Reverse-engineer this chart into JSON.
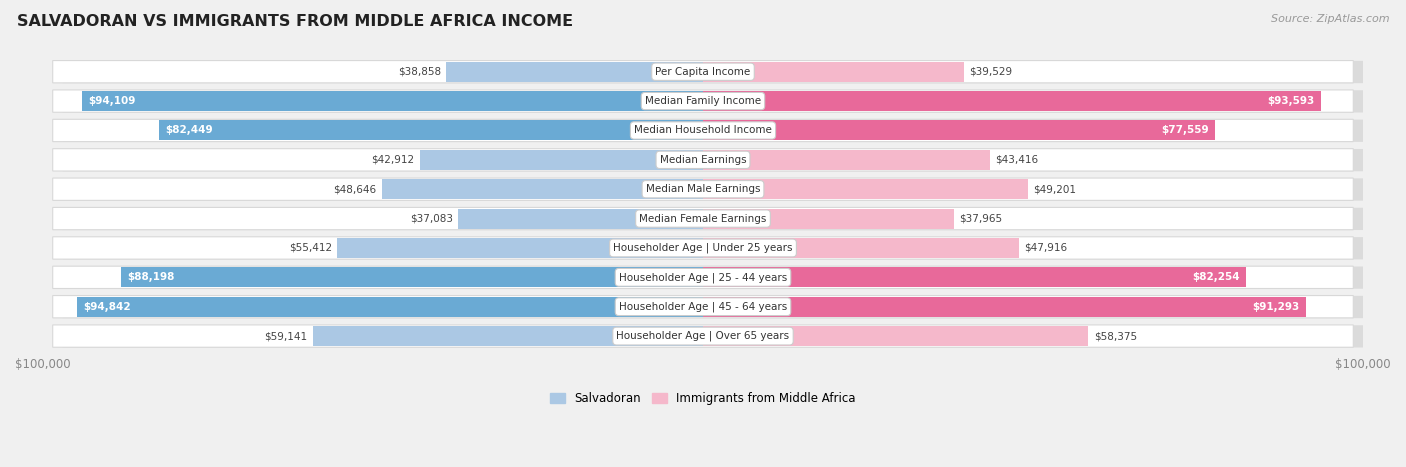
{
  "title": "SALVADORAN VS IMMIGRANTS FROM MIDDLE AFRICA INCOME",
  "source": "Source: ZipAtlas.com",
  "categories": [
    "Per Capita Income",
    "Median Family Income",
    "Median Household Income",
    "Median Earnings",
    "Median Male Earnings",
    "Median Female Earnings",
    "Householder Age | Under 25 years",
    "Householder Age | 25 - 44 years",
    "Householder Age | 45 - 64 years",
    "Householder Age | Over 65 years"
  ],
  "salvadoran_values": [
    38858,
    94109,
    82449,
    42912,
    48646,
    37083,
    55412,
    88198,
    94842,
    59141
  ],
  "immigrant_values": [
    39529,
    93593,
    77559,
    43416,
    49201,
    37965,
    47916,
    82254,
    91293,
    58375
  ],
  "salvadoran_labels": [
    "$38,858",
    "$94,109",
    "$82,449",
    "$42,912",
    "$48,646",
    "$37,083",
    "$55,412",
    "$88,198",
    "$94,842",
    "$59,141"
  ],
  "immigrant_labels": [
    "$39,529",
    "$93,593",
    "$77,559",
    "$43,416",
    "$49,201",
    "$37,965",
    "$47,916",
    "$82,254",
    "$91,293",
    "$58,375"
  ],
  "salvadoran_color_light": "#abc8e4",
  "salvadoran_color_dark": "#6aaad4",
  "immigrant_color_light": "#f5b8cb",
  "immigrant_color_dark": "#e8699a",
  "max_value": 100000,
  "background_color": "#f0f0f0",
  "row_bg_color": "#ffffff",
  "row_border_color": "#d0d0d0",
  "label_dark_color": "#ffffff",
  "label_light_color": "#555555",
  "dark_threshold": 70000,
  "legend_salvadoran_color": "#abc8e4",
  "legend_immigrant_color": "#f5b8cb",
  "tick_color": "#888888"
}
